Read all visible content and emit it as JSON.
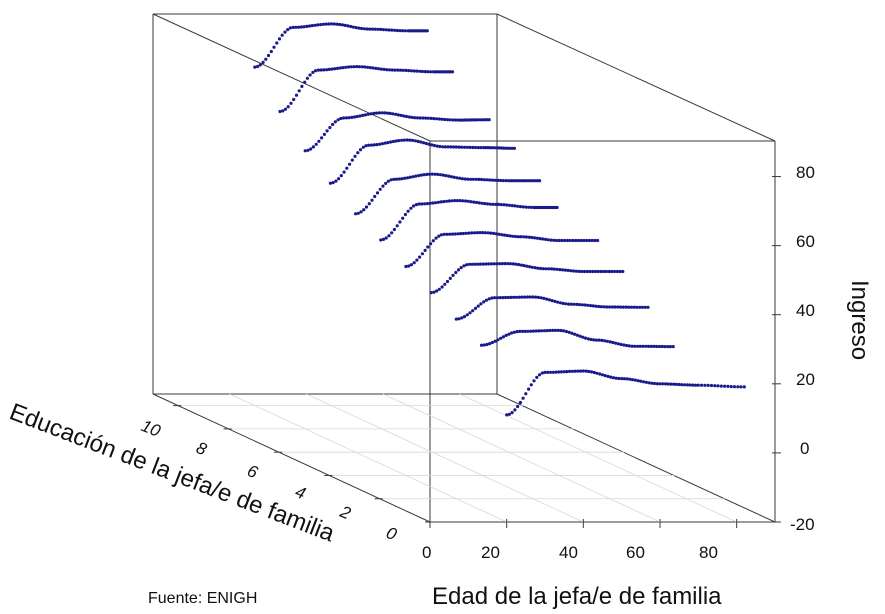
{
  "chart_data": {
    "type": "scatter",
    "projection": "3d",
    "xlabel": "Edad de la jefa/e de familia",
    "ylabel": "Educación de la jefa/e de familia",
    "zlabel": "Ingreso",
    "xlim": [
      0,
      90
    ],
    "ylim": [
      0,
      11
    ],
    "zlim": [
      -20,
      90
    ],
    "x_ticks": [
      "0",
      "20",
      "40",
      "60",
      "80"
    ],
    "y_ticks": [
      "10",
      "8",
      "6",
      "4",
      "2",
      "0"
    ],
    "z_ticks": [
      "80",
      "60",
      "40",
      "20",
      "0",
      "-20"
    ],
    "source": "Fuente: ENIGH",
    "marker_color": "#1a1a8c",
    "grid": true,
    "series_by_education": [
      {
        "education": 0,
        "x": [
          20,
          30,
          40,
          50,
          60,
          70,
          82
        ],
        "y": [
          11.0,
          23.3,
          23.7,
          21.5,
          20.0,
          19.6,
          19.1
        ]
      },
      {
        "education": 1,
        "x": [
          20,
          30,
          40,
          50,
          60,
          70
        ],
        "y": [
          27.8,
          31.8,
          32.1,
          29.3,
          27.5,
          27.4
        ]
      },
      {
        "education": 2,
        "x": [
          20,
          30,
          40,
          50,
          60,
          70
        ],
        "y": [
          32.0,
          38.2,
          38.4,
          36.3,
          35.5,
          35.4
        ]
      },
      {
        "education": 3,
        "x": [
          20,
          30,
          40,
          50,
          60,
          70
        ],
        "y": [
          36.3,
          44.5,
          44.7,
          43.2,
          42.4,
          42.4
        ]
      },
      {
        "education": 4,
        "x": [
          20,
          30,
          40,
          50,
          60,
          70
        ],
        "y": [
          40.5,
          49.8,
          50.3,
          49.1,
          48.0,
          48.0
        ]
      },
      {
        "education": 5,
        "x": [
          20,
          30,
          40,
          50,
          60,
          66
        ],
        "y": [
          44.8,
          55.2,
          56.2,
          55.1,
          54.2,
          54.2
        ]
      },
      {
        "education": 6,
        "x": [
          20,
          30,
          40,
          50,
          60,
          68
        ],
        "y": [
          49.0,
          59.0,
          60.5,
          59.0,
          58.6,
          58.6
        ]
      },
      {
        "education": 7,
        "x": [
          20,
          30,
          40,
          50,
          60,
          68
        ],
        "y": [
          54.5,
          65.5,
          67.0,
          65.0,
          64.8,
          64.6
        ]
      },
      {
        "education": 8,
        "x": [
          20,
          30,
          40,
          50,
          60,
          68
        ],
        "y": [
          60.5,
          70.0,
          71.5,
          70.0,
          69.4,
          69.5
        ]
      },
      {
        "education": 9,
        "x": [
          20,
          30,
          40,
          50,
          60,
          65
        ],
        "y": [
          68.5,
          80.5,
          81.5,
          80.5,
          80.0,
          80.0
        ]
      },
      {
        "education": 10,
        "x": [
          20,
          30,
          40,
          50,
          60,
          65
        ],
        "y": [
          78.0,
          89.5,
          90.5,
          89.0,
          88.5,
          88.5
        ]
      }
    ]
  }
}
